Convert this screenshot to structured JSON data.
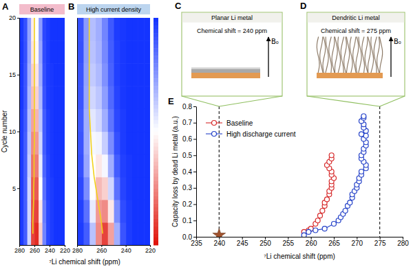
{
  "chart_data": [
    {
      "type": "heatmap",
      "panel_label": "A",
      "title": "Baseline",
      "x_label": "⁷Li chemical shift (ppm)",
      "y_label": "Cycle number",
      "xlim": [
        280,
        220
      ],
      "xticks": [
        280,
        260,
        240,
        220
      ],
      "ylim": [
        0,
        20
      ],
      "yticks": [
        5,
        10,
        15,
        20
      ],
      "zlim": [
        0,
        1
      ],
      "x": [
        222.5,
        227.5,
        232.5,
        237.5,
        242.5,
        247.5,
        252.5,
        257.5,
        262.5,
        267.5,
        272.5,
        277.5
      ],
      "y": [
        1,
        3,
        5,
        7,
        9,
        11,
        13,
        15,
        17,
        19
      ],
      "z": [
        [
          0,
          0,
          0,
          0.02,
          0.05,
          0.2,
          0.6,
          0.95,
          0.9,
          0.4,
          0.1,
          0.02
        ],
        [
          0,
          0,
          0,
          0.02,
          0.05,
          0.18,
          0.55,
          0.9,
          0.88,
          0.4,
          0.1,
          0.02
        ],
        [
          0,
          0,
          0,
          0.02,
          0.04,
          0.15,
          0.5,
          0.85,
          0.85,
          0.4,
          0.1,
          0.02
        ],
        [
          0,
          0,
          0,
          0.01,
          0.04,
          0.12,
          0.45,
          0.78,
          0.8,
          0.38,
          0.1,
          0.02
        ],
        [
          0,
          0,
          0,
          0.01,
          0.03,
          0.1,
          0.4,
          0.72,
          0.75,
          0.36,
          0.1,
          0.02
        ],
        [
          0,
          0,
          0,
          0.01,
          0.03,
          0.1,
          0.36,
          0.66,
          0.7,
          0.34,
          0.09,
          0.02
        ],
        [
          0,
          0,
          0,
          0.01,
          0.02,
          0.08,
          0.33,
          0.6,
          0.64,
          0.32,
          0.08,
          0.01
        ],
        [
          0,
          0,
          0,
          0.01,
          0.02,
          0.07,
          0.3,
          0.56,
          0.6,
          0.3,
          0.08,
          0.01
        ],
        [
          0,
          0,
          0,
          0,
          0.02,
          0.06,
          0.28,
          0.52,
          0.56,
          0.28,
          0.07,
          0.01
        ],
        [
          0,
          0,
          0,
          0,
          0.02,
          0.05,
          0.26,
          0.5,
          0.54,
          0.27,
          0.07,
          0.01
        ]
      ],
      "peak": {
        "color": "#f2d21b",
        "x": [
          262,
          262,
          261.5,
          261,
          261,
          260.5,
          260.5,
          260.5,
          260,
          260,
          260,
          260,
          260,
          260,
          260,
          260,
          260,
          260,
          260,
          260
        ],
        "y": [
          1,
          2,
          3,
          4,
          5,
          6,
          7,
          8,
          9,
          10,
          11,
          12,
          13,
          14,
          15,
          16,
          17,
          18,
          19,
          20
        ]
      }
    },
    {
      "type": "heatmap",
      "panel_label": "B",
      "title": "High current density",
      "tick_labels": "x",
      "xlim": [
        280,
        220
      ],
      "xticks": [
        280,
        260,
        240,
        220
      ],
      "ylim": [
        0,
        20
      ],
      "zlim": [
        0,
        1
      ],
      "x": [
        222.5,
        227.5,
        232.5,
        237.5,
        242.5,
        247.5,
        252.5,
        257.5,
        262.5,
        267.5,
        272.5,
        277.5
      ],
      "y": [
        1,
        3,
        5,
        7,
        9,
        11,
        13,
        15,
        17,
        19
      ],
      "z": [
        [
          0,
          0,
          0,
          0.02,
          0.08,
          0.3,
          0.7,
          0.9,
          0.75,
          0.35,
          0.1,
          0.02
        ],
        [
          0,
          0,
          0,
          0.02,
          0.06,
          0.22,
          0.55,
          0.75,
          0.72,
          0.45,
          0.15,
          0.03
        ],
        [
          0,
          0,
          0,
          0.01,
          0.04,
          0.15,
          0.4,
          0.6,
          0.65,
          0.5,
          0.22,
          0.05
        ],
        [
          0,
          0,
          0,
          0.01,
          0.03,
          0.1,
          0.3,
          0.48,
          0.55,
          0.5,
          0.28,
          0.07
        ],
        [
          0,
          0,
          0,
          0,
          0.02,
          0.07,
          0.22,
          0.38,
          0.47,
          0.48,
          0.3,
          0.08
        ],
        [
          0,
          0,
          0,
          0,
          0.02,
          0.05,
          0.16,
          0.3,
          0.4,
          0.44,
          0.3,
          0.09
        ],
        [
          0,
          0,
          0,
          0,
          0.01,
          0.04,
          0.13,
          0.26,
          0.36,
          0.4,
          0.28,
          0.08
        ],
        [
          0,
          0,
          0,
          0,
          0.01,
          0.03,
          0.11,
          0.23,
          0.33,
          0.37,
          0.27,
          0.08
        ],
        [
          0,
          0,
          0,
          0,
          0.01,
          0.03,
          0.1,
          0.21,
          0.31,
          0.35,
          0.26,
          0.07
        ],
        [
          0,
          0,
          0,
          0,
          0.01,
          0.02,
          0.09,
          0.2,
          0.3,
          0.34,
          0.25,
          0.07
        ]
      ],
      "peak": {
        "color": "#f2d21b",
        "x": [
          259,
          260,
          261.5,
          263,
          264.5,
          266,
          267,
          268,
          268.5,
          269,
          269.5,
          270,
          270,
          270,
          270,
          270,
          270,
          270,
          270,
          270
        ],
        "y": [
          1,
          2,
          3,
          4,
          5,
          6,
          7,
          8,
          9,
          10,
          11,
          12,
          13,
          14,
          15,
          16,
          17,
          18,
          19,
          20
        ]
      }
    },
    {
      "type": "scatter",
      "panel_label": "E",
      "x_label": "⁷Li chemical shift (ppm)",
      "y_label": "Capacity loss by dead Li metal (a.u.)",
      "xlim": [
        235,
        280
      ],
      "xticks": [
        235,
        240,
        245,
        250,
        255,
        260,
        265,
        270,
        275,
        280
      ],
      "ylim": [
        0,
        0.8
      ],
      "yticks": [
        {
          "value": 0,
          "label": "0.0"
        },
        0.1,
        0.2,
        0.3,
        0.4,
        0.5,
        0.6,
        0.7,
        0.8
      ],
      "legend": "upper left",
      "vlines": {
        "values": [
          240,
          275
        ],
        "line_style": "dashed"
      },
      "series": [
        {
          "name": "Baseline",
          "color": "#d62728",
          "marker": "open_circle",
          "line_style": "solid",
          "x": [
            258.5,
            259.5,
            260,
            261,
            261.5,
            262,
            262.5,
            263,
            263,
            263.5,
            264,
            264,
            264.5,
            264.5,
            264.5,
            265,
            264.5,
            264.5,
            264,
            263.5,
            264,
            264.5,
            264.5
          ],
          "values": [
            0.03,
            0.04,
            0.05,
            0.08,
            0.1,
            0.13,
            0.16,
            0.19,
            0.21,
            0.23,
            0.26,
            0.28,
            0.3,
            0.32,
            0.34,
            0.36,
            0.38,
            0.4,
            0.42,
            0.44,
            0.46,
            0.48,
            0.5
          ]
        },
        {
          "name": "High discharge current",
          "color": "#2340c8",
          "marker": "open_circle",
          "line_style": "solid",
          "x": [
            258.5,
            259.5,
            261,
            263,
            265,
            266,
            266.5,
            267,
            267.5,
            268,
            268.5,
            269,
            269,
            269.5,
            270,
            270,
            270.5,
            270.5,
            271,
            271,
            272,
            272,
            271.5,
            271,
            271,
            271.5,
            271.5,
            272,
            272,
            271.5,
            272,
            271,
            272,
            271.5,
            271.5,
            271,
            271.5,
            271.5
          ],
          "values": [
            0.01,
            0.03,
            0.04,
            0.05,
            0.08,
            0.1,
            0.12,
            0.14,
            0.16,
            0.19,
            0.21,
            0.24,
            0.26,
            0.28,
            0.3,
            0.32,
            0.34,
            0.36,
            0.38,
            0.4,
            0.42,
            0.44,
            0.46,
            0.48,
            0.5,
            0.52,
            0.54,
            0.56,
            0.58,
            0.6,
            0.62,
            0.63,
            0.65,
            0.67,
            0.69,
            0.71,
            0.73,
            0.74
          ]
        },
        {
          "color": "#a0522d",
          "marker": "star",
          "line_style": "none",
          "x": [
            240
          ],
          "values": [
            0.01
          ]
        }
      ]
    }
  ],
  "schematics": [
    {
      "panel_label": "C",
      "title": "Planar Li metal",
      "text": "Chemical shift = 240 ppm",
      "field_label": "B₀"
    },
    {
      "panel_label": "D",
      "title": "Dendritic Li metal",
      "text": "Chemical shift = 275 ppm",
      "field_label": "B₀"
    }
  ]
}
